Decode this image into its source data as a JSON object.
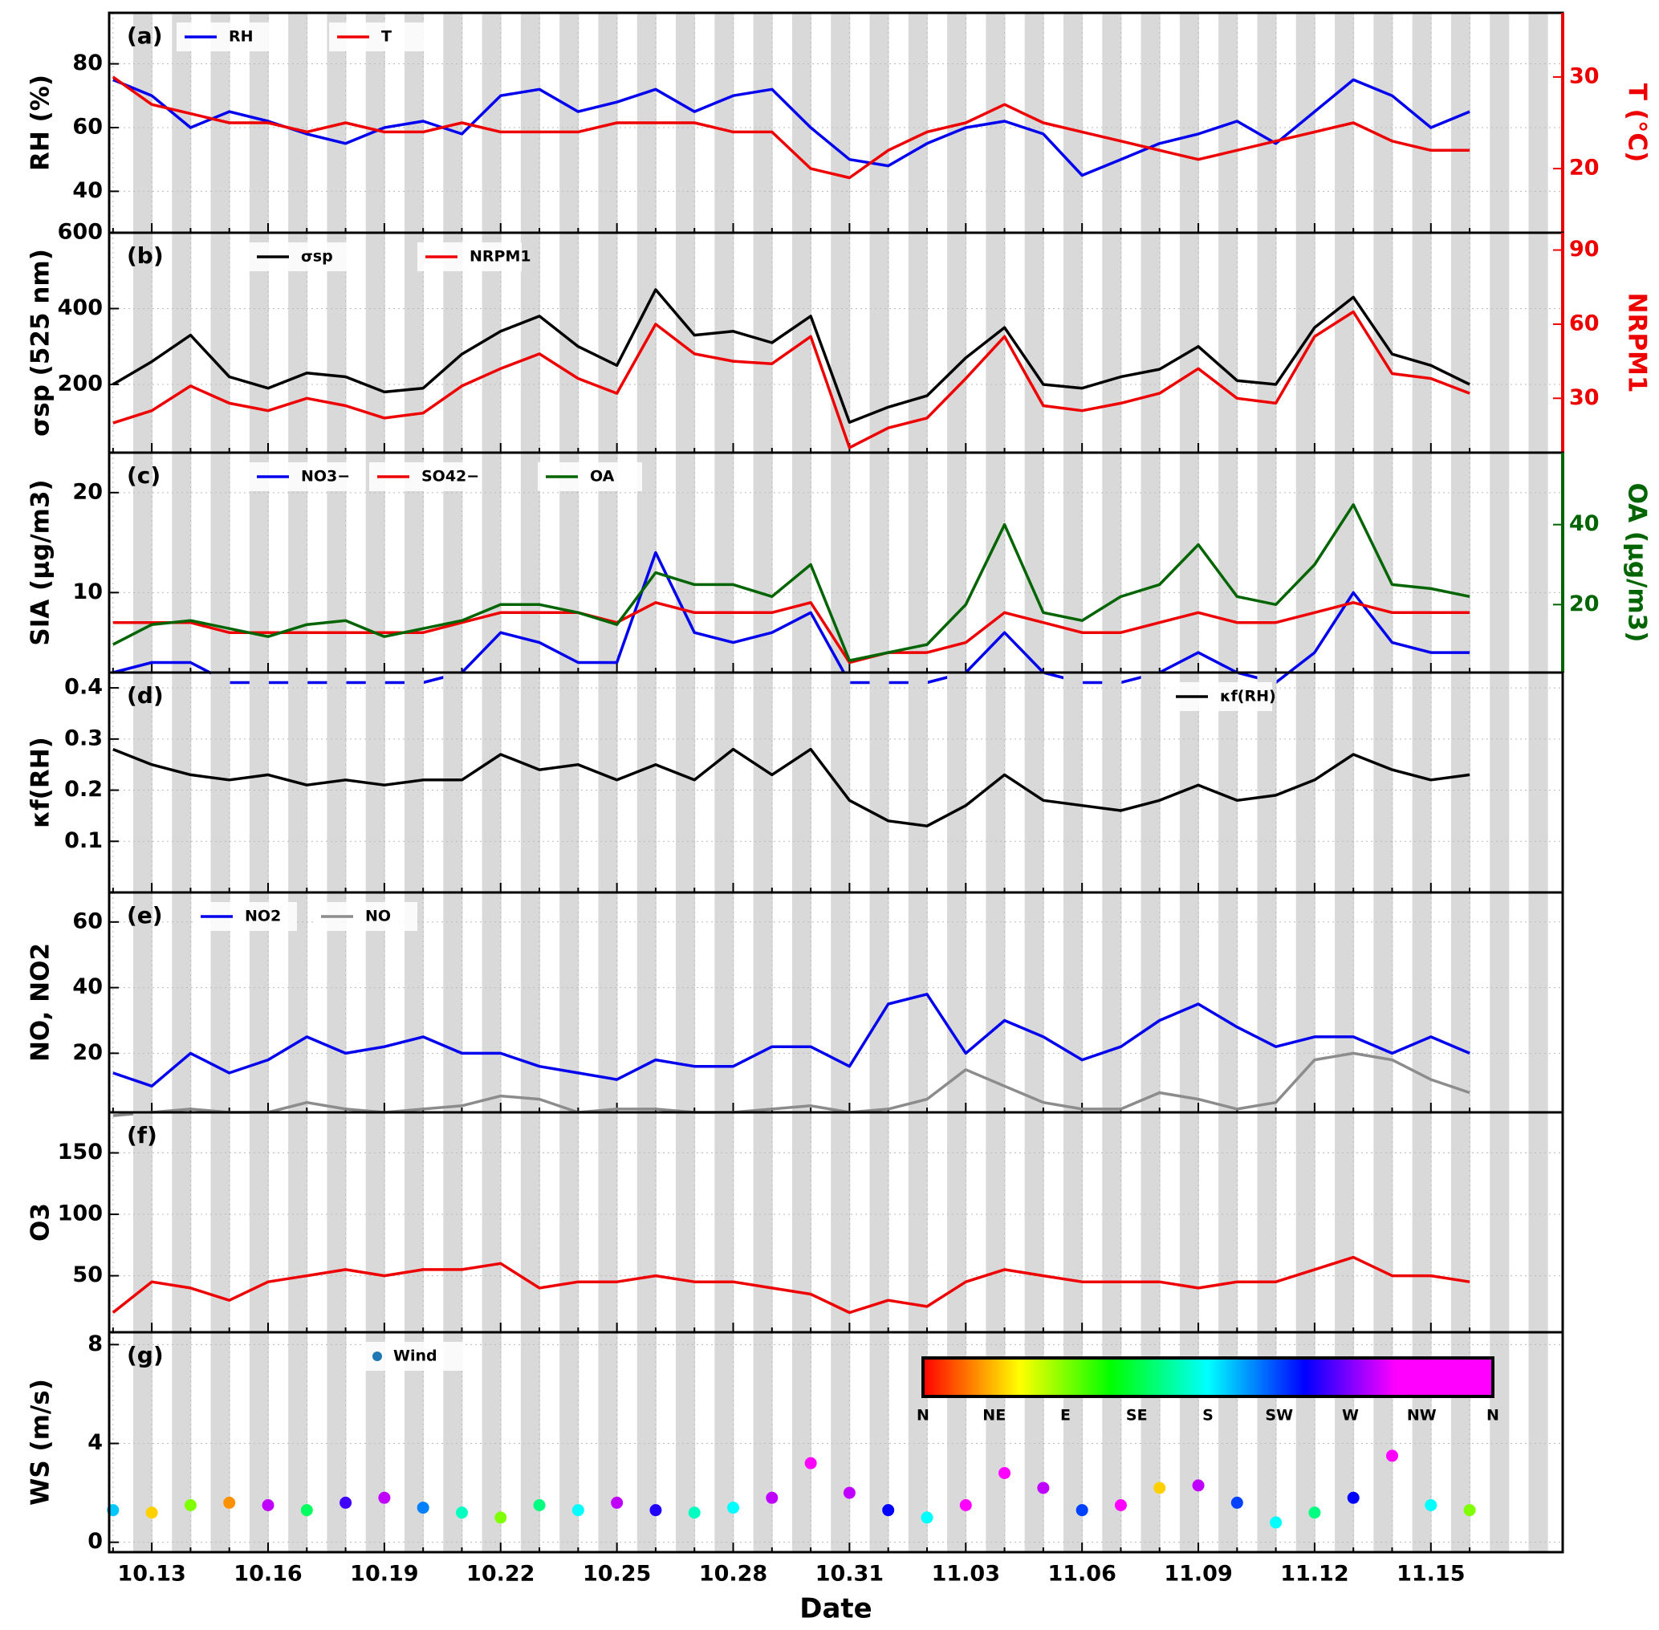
{
  "chart_data": [
    {
      "type": "line",
      "panel_label": "(a)",
      "ylabel": "RH (%)",
      "y2label": "T (°C)",
      "grid": true,
      "x": [
        null,
        "10.13",
        null,
        null,
        "10.16",
        null,
        null,
        "10.19",
        null,
        null,
        "10.22",
        null,
        null,
        "10.25",
        null,
        null,
        "10.28",
        null,
        null,
        "10.31",
        null,
        null,
        "11.03",
        null,
        null,
        "11.06",
        null,
        null,
        "11.09",
        null,
        null,
        "11.12",
        null,
        null,
        "11.15",
        null
      ],
      "ylim": [
        27,
        96
      ],
      "yticks": [
        40,
        60,
        80
      ],
      "y2lim": [
        13,
        37
      ],
      "y2ticks": [
        20,
        30
      ],
      "series": [
        {
          "name": "RH",
          "color": "#0000ee",
          "values": [
            75,
            70,
            60,
            65,
            62,
            58,
            55,
            60,
            62,
            58,
            70,
            72,
            65,
            68,
            72,
            65,
            70,
            72,
            60,
            50,
            48,
            55,
            60,
            62,
            58,
            45,
            50,
            55,
            58,
            62,
            55,
            65,
            75,
            70,
            60,
            65
          ]
        },
        {
          "name": "T",
          "color": "#ee0000",
          "axis": "y2",
          "values": [
            30,
            27,
            26,
            25,
            25,
            24,
            25,
            24,
            24,
            25,
            24,
            24,
            24,
            25,
            25,
            25,
            24,
            24,
            20,
            19,
            22,
            24,
            25,
            27,
            25,
            24,
            23,
            22,
            21,
            22,
            23,
            24,
            25,
            23,
            22,
            22
          ]
        }
      ]
    },
    {
      "type": "line",
      "panel_label": "(b)",
      "ylabel": "σsp (525 nm)",
      "y2label": "NRPM1",
      "grid": true,
      "x": [
        null,
        "10.13",
        null,
        null,
        "10.16",
        null,
        null,
        "10.19",
        null,
        null,
        "10.22",
        null,
        null,
        "10.25",
        null,
        null,
        "10.28",
        null,
        null,
        "10.31",
        null,
        null,
        "11.03",
        null,
        null,
        "11.06",
        null,
        null,
        "11.09",
        null,
        null,
        "11.12",
        null,
        null,
        "11.15",
        null
      ],
      "ylim": [
        20,
        600
      ],
      "yticks": [
        200,
        400,
        600
      ],
      "y2lim": [
        8,
        97
      ],
      "y2ticks": [
        30,
        60,
        90
      ],
      "series": [
        {
          "name": "σsp",
          "color": "#000000",
          "values": [
            200,
            260,
            330,
            220,
            190,
            230,
            220,
            180,
            190,
            280,
            340,
            380,
            300,
            250,
            450,
            330,
            340,
            310,
            380,
            100,
            140,
            170,
            270,
            350,
            200,
            190,
            220,
            240,
            300,
            210,
            200,
            350,
            430,
            280,
            250,
            200
          ]
        },
        {
          "name": "NRPM1",
          "color": "#ee0000",
          "axis": "y2",
          "values": [
            20,
            25,
            35,
            28,
            25,
            30,
            27,
            22,
            24,
            35,
            42,
            48,
            38,
            32,
            60,
            48,
            45,
            44,
            55,
            10,
            18,
            22,
            38,
            55,
            27,
            25,
            28,
            32,
            42,
            30,
            28,
            55,
            65,
            40,
            38,
            32
          ]
        }
      ]
    },
    {
      "type": "line",
      "panel_label": "(c)",
      "ylabel": "SIA (μg/m3)",
      "y2label": "OA (μg/m3)",
      "grid": true,
      "x": [
        null,
        "10.13",
        null,
        null,
        "10.16",
        null,
        null,
        "10.19",
        null,
        null,
        "10.22",
        null,
        null,
        "10.25",
        null,
        null,
        "10.28",
        null,
        null,
        "10.31",
        null,
        null,
        "11.03",
        null,
        null,
        "11.06",
        null,
        null,
        "11.09",
        null,
        null,
        "11.12",
        null,
        null,
        "11.15",
        null
      ],
      "ylim": [
        2,
        24
      ],
      "yticks": [
        10,
        20
      ],
      "y2lim": [
        3,
        58
      ],
      "y2ticks": [
        20,
        40
      ],
      "series": [
        {
          "name": "NO3−",
          "color": "#0000ee",
          "values": [
            2,
            3,
            3,
            1,
            1,
            1,
            1,
            1,
            1,
            2,
            6,
            5,
            3,
            3,
            14,
            6,
            5,
            6,
            8,
            1,
            1,
            1,
            2,
            6,
            2,
            1,
            1,
            2,
            4,
            2,
            1,
            4,
            10,
            5,
            4,
            4
          ]
        },
        {
          "name": "SO42−",
          "color": "#ee0000",
          "values": [
            7,
            7,
            7,
            6,
            6,
            6,
            6,
            6,
            6,
            7,
            8,
            8,
            8,
            7,
            9,
            8,
            8,
            8,
            9,
            3,
            4,
            4,
            5,
            8,
            7,
            6,
            6,
            7,
            8,
            7,
            7,
            8,
            9,
            8,
            8,
            8
          ]
        },
        {
          "name": "OA",
          "color": "#006400",
          "axis": "y2",
          "values": [
            10,
            15,
            16,
            14,
            12,
            15,
            16,
            12,
            14,
            16,
            20,
            20,
            18,
            15,
            28,
            25,
            25,
            22,
            30,
            6,
            8,
            10,
            20,
            40,
            18,
            16,
            22,
            25,
            35,
            22,
            20,
            30,
            45,
            25,
            24,
            22
          ]
        }
      ]
    },
    {
      "type": "line",
      "panel_label": "(d)",
      "ylabel": "κf(RH)",
      "grid": true,
      "x": [
        null,
        "10.13",
        null,
        null,
        "10.16",
        null,
        null,
        "10.19",
        null,
        null,
        "10.22",
        null,
        null,
        "10.25",
        null,
        null,
        "10.28",
        null,
        null,
        "10.31",
        null,
        null,
        "11.03",
        null,
        null,
        "11.06",
        null,
        null,
        "11.09",
        null,
        null,
        "11.12",
        null,
        null,
        "11.15",
        null
      ],
      "ylim": [
        0,
        0.43
      ],
      "yticks": [
        0.1,
        0.2,
        0.3,
        0.4
      ],
      "series": [
        {
          "name": "κf(RH)",
          "color": "#000000",
          "values": [
            0.28,
            0.25,
            0.23,
            0.22,
            0.23,
            0.21,
            0.22,
            0.21,
            0.22,
            0.22,
            0.27,
            0.24,
            0.25,
            0.22,
            0.25,
            0.22,
            0.28,
            0.23,
            0.28,
            0.18,
            0.14,
            0.13,
            0.17,
            0.23,
            0.18,
            0.17,
            0.16,
            0.18,
            0.21,
            0.18,
            0.19,
            0.22,
            0.27,
            0.24,
            0.22,
            0.23
          ]
        }
      ]
    },
    {
      "type": "line",
      "panel_label": "(e)",
      "ylabel": "NO, NO2",
      "grid": true,
      "x": [
        null,
        "10.13",
        null,
        null,
        "10.16",
        null,
        null,
        "10.19",
        null,
        null,
        "10.22",
        null,
        null,
        "10.25",
        null,
        null,
        "10.28",
        null,
        null,
        "10.31",
        null,
        null,
        "11.03",
        null,
        null,
        "11.06",
        null,
        null,
        "11.09",
        null,
        null,
        "11.12",
        null,
        null,
        "11.15",
        null
      ],
      "ylim": [
        2,
        69
      ],
      "yticks": [
        20,
        40,
        60
      ],
      "series": [
        {
          "name": "NO2",
          "color": "#0000ee",
          "values": [
            14,
            10,
            20,
            14,
            18,
            25,
            20,
            22,
            25,
            20,
            20,
            16,
            14,
            12,
            18,
            16,
            16,
            22,
            22,
            16,
            35,
            38,
            20,
            30,
            25,
            18,
            22,
            30,
            35,
            28,
            22,
            25,
            25,
            20,
            25,
            20
          ]
        },
        {
          "name": "NO",
          "color": "#8c8c8c",
          "values": [
            1,
            2,
            3,
            2,
            2,
            5,
            3,
            2,
            3,
            4,
            7,
            6,
            2,
            3,
            3,
            2,
            2,
            3,
            4,
            2,
            3,
            6,
            15,
            10,
            5,
            3,
            3,
            8,
            6,
            3,
            5,
            18,
            20,
            18,
            12,
            8
          ]
        }
      ]
    },
    {
      "type": "line",
      "panel_label": "(f)",
      "ylabel": "O3",
      "grid": true,
      "x": [
        null,
        "10.13",
        null,
        null,
        "10.16",
        null,
        null,
        "10.19",
        null,
        null,
        "10.22",
        null,
        null,
        "10.25",
        null,
        null,
        "10.28",
        null,
        null,
        "10.31",
        null,
        null,
        "11.03",
        null,
        null,
        "11.06",
        null,
        null,
        "11.09",
        null,
        null,
        "11.12",
        null,
        null,
        "11.15",
        null
      ],
      "ylim": [
        4,
        183
      ],
      "yticks": [
        50,
        100,
        150
      ],
      "series": [
        {
          "color": "#ee0000",
          "values": [
            20,
            45,
            40,
            30,
            45,
            50,
            55,
            50,
            55,
            55,
            60,
            40,
            45,
            45,
            50,
            45,
            45,
            40,
            35,
            20,
            30,
            25,
            45,
            55,
            50,
            45,
            45,
            45,
            40,
            45,
            45,
            55,
            65,
            50,
            50,
            45
          ]
        }
      ]
    },
    {
      "type": "scatter",
      "panel_label": "(g)",
      "ylabel": "WS (m/s)",
      "xlabel": "Date",
      "grid": true,
      "x": [
        null,
        "10.13",
        null,
        null,
        "10.16",
        null,
        null,
        "10.19",
        null,
        null,
        "10.22",
        null,
        null,
        "10.25",
        null,
        null,
        "10.28",
        null,
        null,
        "10.31",
        null,
        null,
        "11.03",
        null,
        null,
        "11.06",
        null,
        null,
        "11.09",
        null,
        null,
        "11.12",
        null,
        null,
        "11.15",
        null
      ],
      "ylim": [
        -0.4,
        8.5
      ],
      "yticks": [
        0,
        4,
        8
      ],
      "colorbar": {
        "labels": [
          "N",
          "NE",
          "E",
          "SE",
          "S",
          "SW",
          "W",
          "NW",
          "N"
        ]
      },
      "series": [
        {
          "name": "Wind",
          "color": "#1f77b4",
          "values": [
            1.3,
            1.2,
            1.5,
            1.6,
            1.5,
            1.3,
            1.6,
            1.8,
            1.4,
            1.2,
            1.0,
            1.5,
            1.3,
            1.6,
            1.3,
            1.2,
            1.4,
            1.8,
            3.2,
            2.0,
            1.3,
            1.0,
            1.5,
            2.8,
            2.2,
            1.3,
            1.5,
            2.2,
            2.3,
            1.6,
            0.8,
            1.2,
            1.8,
            3.5,
            1.5,
            1.3
          ],
          "colors": [
            "#00c8ff",
            "#ffd000",
            "#80ff00",
            "#ff9000",
            "#c000ff",
            "#00ff60",
            "#4000ff",
            "#c000ff",
            "#0080ff",
            "#00ffc0",
            "#80ff00",
            "#00ff80",
            "#00ffff",
            "#c000ff",
            "#2000ff",
            "#00ffc0",
            "#00ffff",
            "#c000ff",
            "#ff00ff",
            "#c000ff",
            "#0000ff",
            "#00ffff",
            "#ff00ff",
            "#ff00ff",
            "#c000ff",
            "#0040ff",
            "#ff00ff",
            "#ffd000",
            "#c000ff",
            "#0040ff",
            "#00ffff",
            "#00ff80",
            "#0000ff",
            "#ff00ff",
            "#00ffff",
            "#80ff00"
          ]
        }
      ]
    }
  ]
}
